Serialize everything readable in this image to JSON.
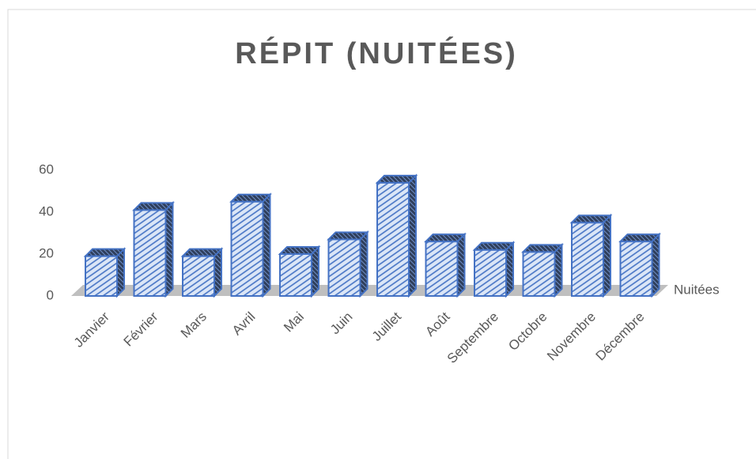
{
  "chart_data": {
    "type": "bar3d",
    "title": "RÉPIT (NUITÉES)",
    "categories": [
      "Janvier",
      "Février",
      "Mars",
      "Avril",
      "Mai",
      "Juin",
      "Juillet",
      "Août",
      "Septembre",
      "Octobre",
      "Novembre",
      "Décembre"
    ],
    "series": [
      {
        "name": "Nuitées",
        "color": "#4472c4",
        "values": [
          19,
          41,
          19,
          45,
          20,
          27,
          54,
          26,
          22,
          21,
          35,
          26
        ]
      }
    ],
    "ylim": [
      0,
      60
    ],
    "yticks": [
      0,
      20,
      40,
      60
    ],
    "grid": false
  }
}
